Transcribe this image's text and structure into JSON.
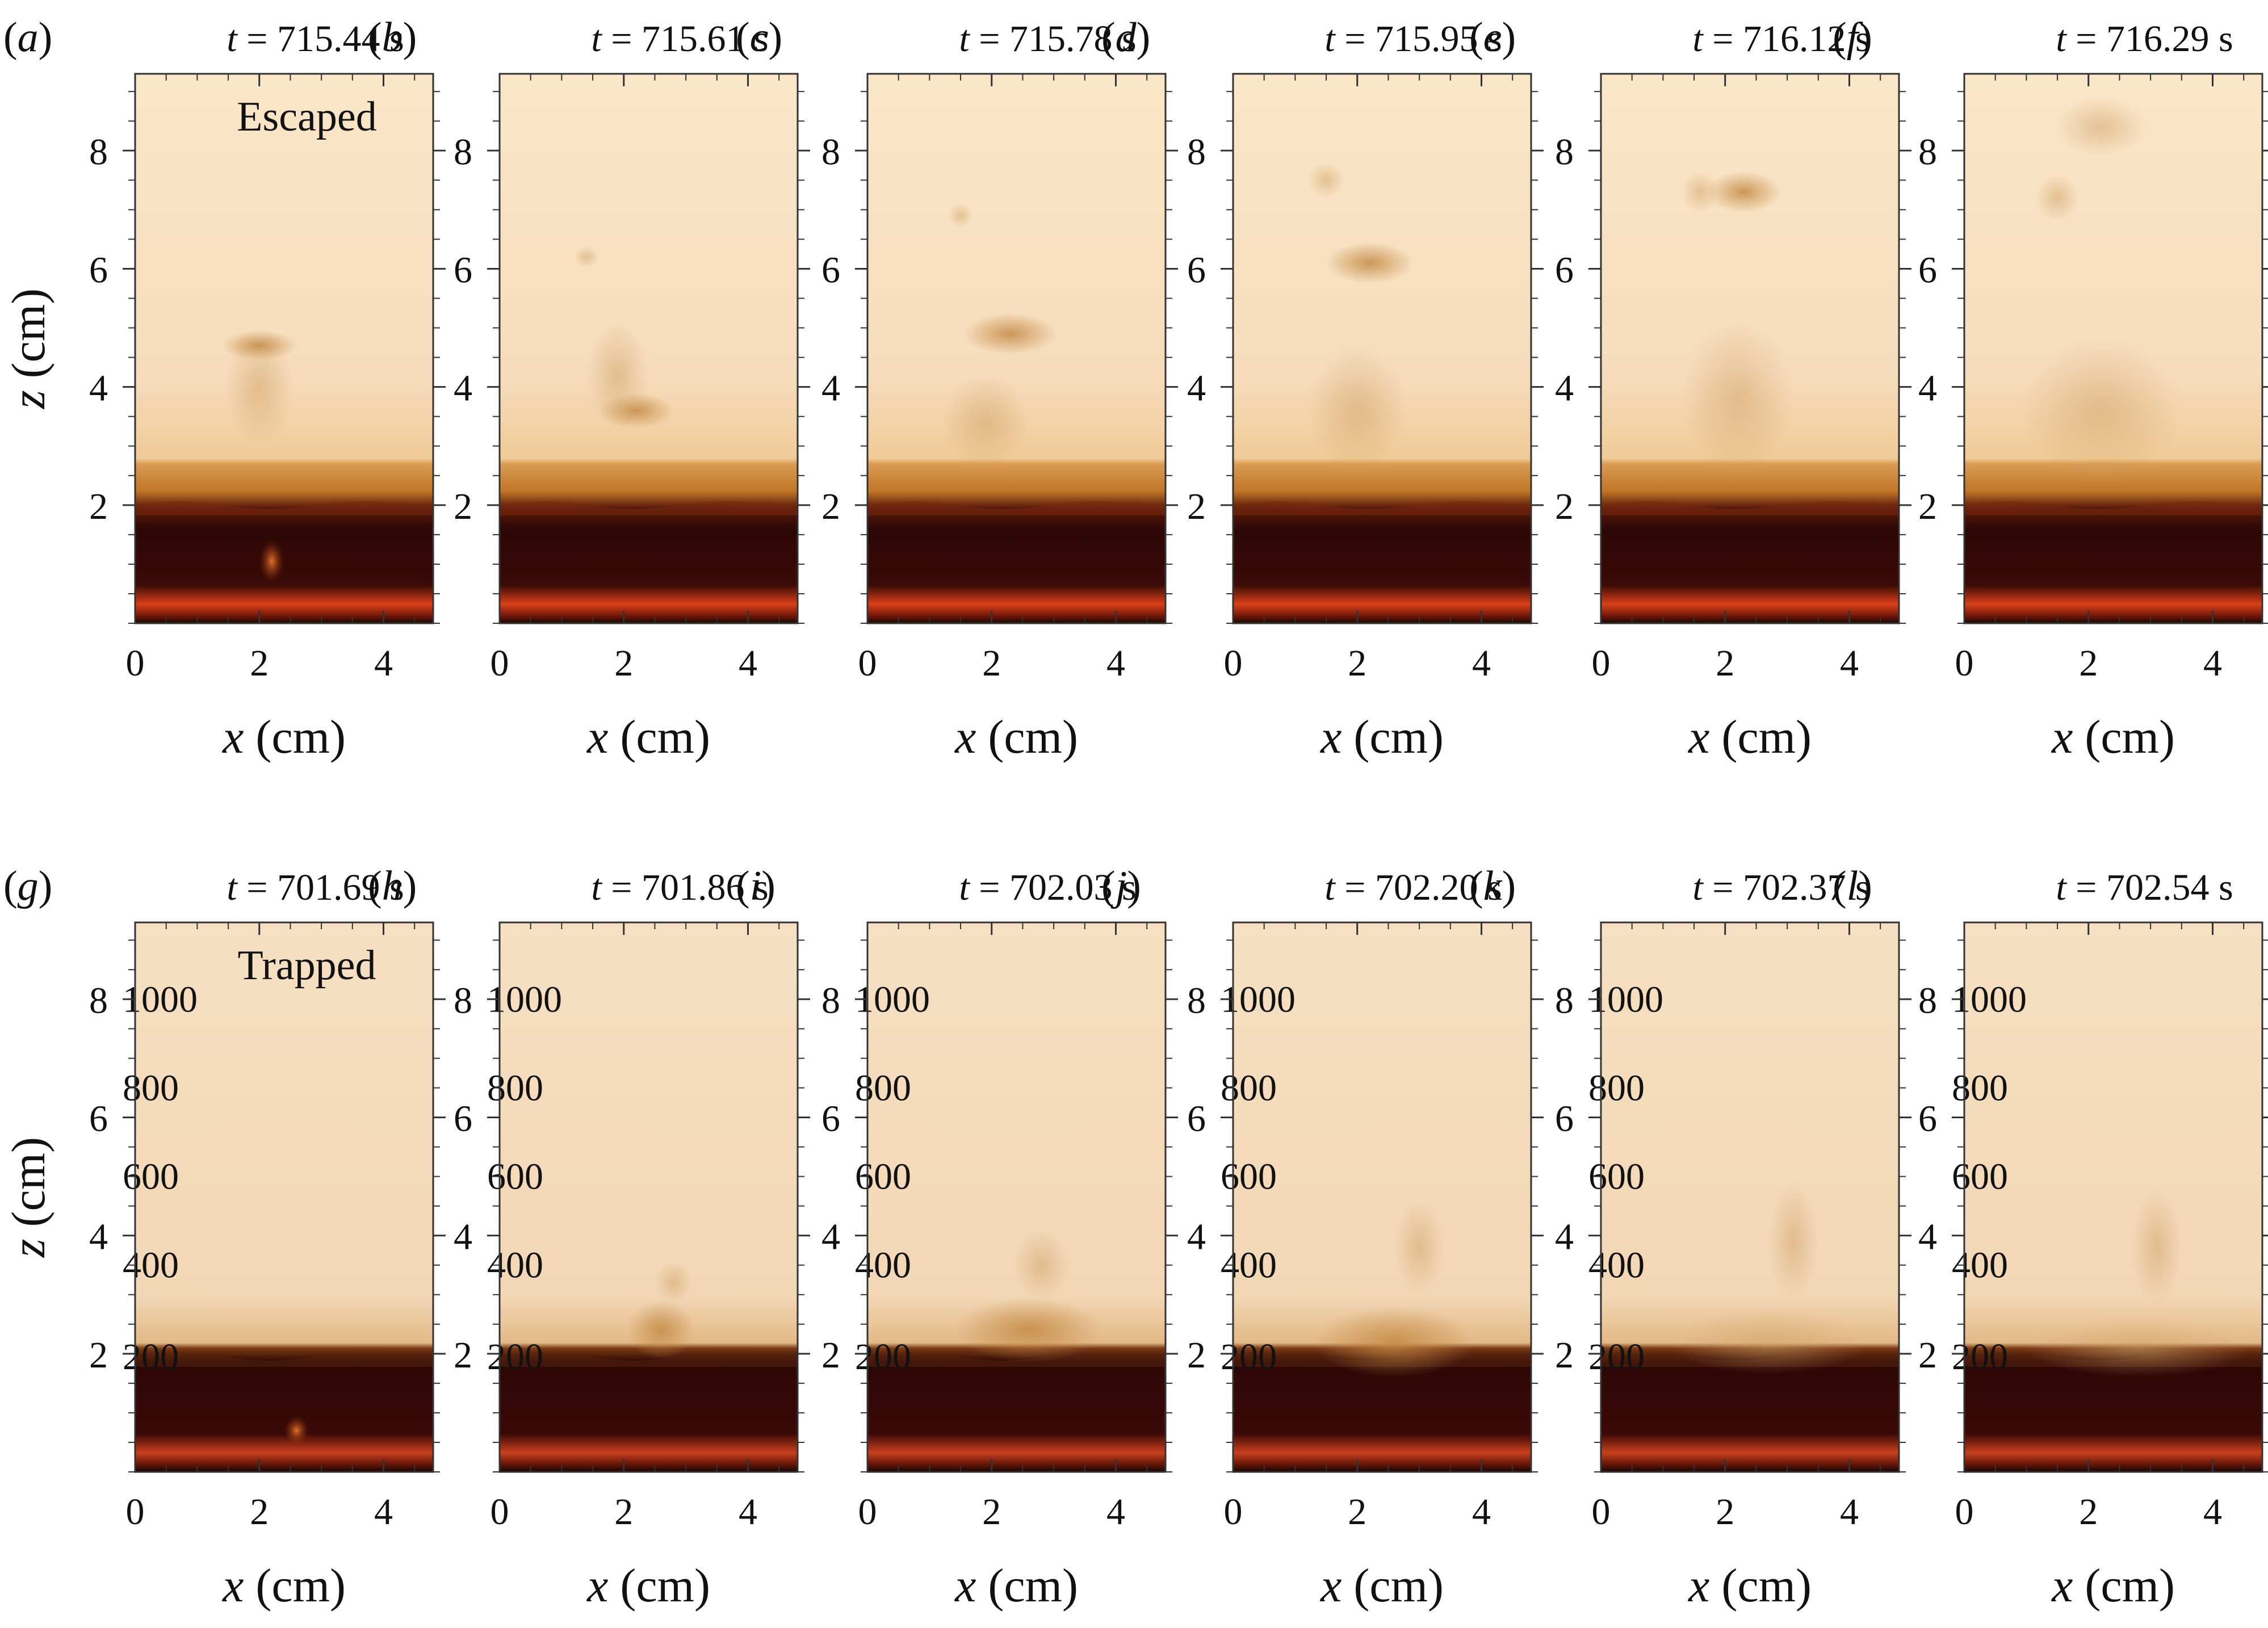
{
  "figure": {
    "rows": [
      {
        "annotation": "Escaped",
        "panels": [
          {
            "label": "a",
            "time_value": "715.44"
          },
          {
            "label": "b",
            "time_value": "715.61"
          },
          {
            "label": "c",
            "time_value": "715.78"
          },
          {
            "label": "d",
            "time_value": "715.95"
          },
          {
            "label": "e",
            "time_value": "716.12"
          },
          {
            "label": "f",
            "time_value": "716.29"
          }
        ]
      },
      {
        "annotation": "Trapped",
        "panels": [
          {
            "label": "g",
            "time_value": "701.69"
          },
          {
            "label": "h",
            "time_value": "701.86"
          },
          {
            "label": "i",
            "time_value": "702.03"
          },
          {
            "label": "j",
            "time_value": "702.20"
          },
          {
            "label": "k",
            "time_value": "702.37"
          },
          {
            "label": "l",
            "time_value": "702.54"
          }
        ]
      }
    ],
    "time_symbol": "t",
    "time_unit": "s",
    "x_axis": {
      "symbol": "x",
      "unit": "(cm)",
      "ticks": [
        0,
        2,
        4
      ],
      "range": [
        0,
        4.8
      ]
    },
    "z_axis": {
      "symbol": "z",
      "unit": "(cm)",
      "ticks": [
        2,
        4,
        6,
        8
      ],
      "range": [
        0,
        9.3
      ]
    },
    "container_scale_marks": [
      "1000",
      "800",
      "600",
      "400",
      "200"
    ],
    "colors": {
      "background_liquid": "#f6dcbc",
      "upper_layer": "#f0ca95",
      "interface_layer": "#c2761e",
      "dense_layer": "#2c0705",
      "bottom_glow": "#d8401a",
      "plume": "#c99a5c"
    }
  }
}
